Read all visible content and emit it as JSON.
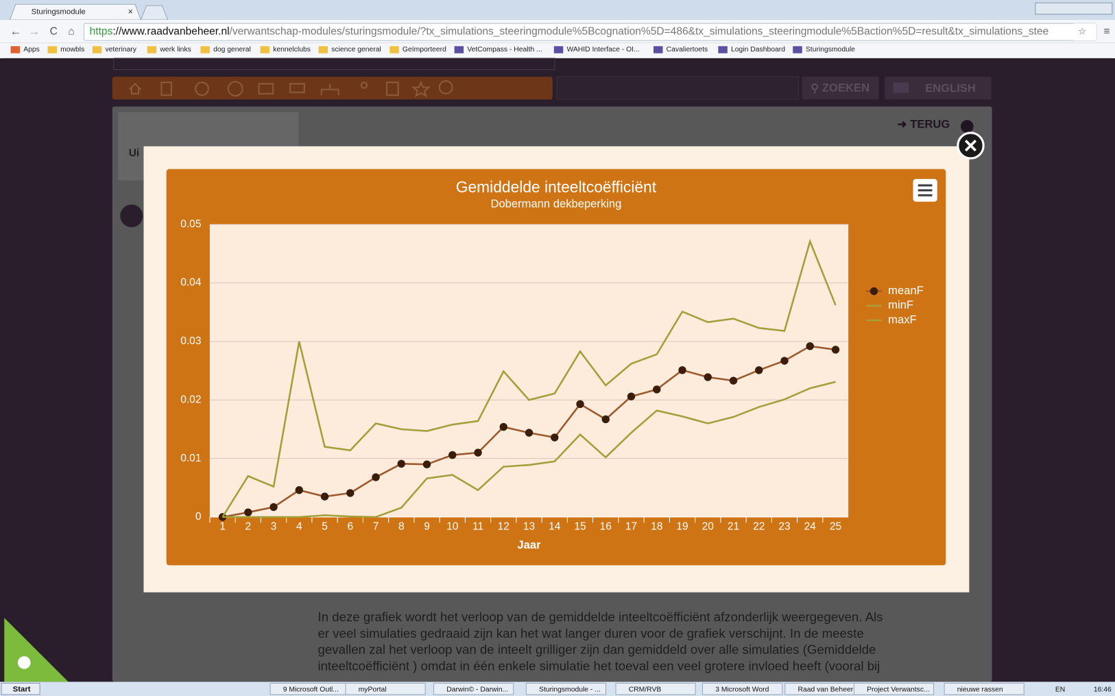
{
  "browser": {
    "tab_title": "Sturingsmodule",
    "url": {
      "scheme": "https",
      "host": "://www.raadvanbeheer.nl",
      "path": "/verwantschap-modules/sturingsmodule/?tx_simulations_steeringmodule%5Bcognation%5D=486&tx_simulations_steeringmodule%5Baction%5D=result&tx_simulations_stee"
    },
    "bookmarks": [
      "Apps",
      "mowbls",
      "veterinary",
      "werk links",
      "dog general",
      "kennelclubs",
      "science general",
      "Geïmporteerd",
      "VetCompass - Health ...",
      "WAHID Interface - OI...",
      "Cavaliertoets",
      "Login Dashboard",
      "Sturingsmodule"
    ]
  },
  "site": {
    "search": "ZOEKEN",
    "language": "ENGLISH",
    "back": "TERUG",
    "side_label": "Ui",
    "paragraph": [
      "In deze grafiek wordt het verloop van de gemiddelde inteeltcoëfficiënt afzonderlijk weergegeven. Als",
      "er veel simulaties gedraaid zijn kan het wat langer duren voor de grafiek verschijnt. In de meeste",
      "gevallen zal het verloop van de inteelt grilliger zijn dan gemiddeld over alle simulaties (Gemiddelde",
      "inteeltcoëfficiënt ) omdat in één enkele simulatie het toeval een veel grotere invloed heeft (vooral bij"
    ]
  },
  "chart_data": {
    "type": "line",
    "title": "Gemiddelde inteeltcoëfficiënt",
    "subtitle": "Dobermann dekbeperking",
    "x_label": "Jaar",
    "categories": [
      "1",
      "2",
      "3",
      "4",
      "5",
      "6",
      "7",
      "8",
      "9",
      "10",
      "11",
      "12",
      "13",
      "14",
      "15",
      "16",
      "17",
      "18",
      "19",
      "20",
      "21",
      "22",
      "23",
      "24",
      "25"
    ],
    "series": [
      {
        "name": "meanF",
        "color": "#9c5a2c",
        "marker_color": "#3b1d0c",
        "marker": true,
        "values": [
          0,
          0.0008,
          0.0017,
          0.0046,
          0.0035,
          0.0041,
          0.0068,
          0.0091,
          0.009,
          0.0106,
          0.011,
          0.0154,
          0.0144,
          0.0136,
          0.0193,
          0.0167,
          0.0206,
          0.0218,
          0.0251,
          0.0239,
          0.0233,
          0.0251,
          0.0267,
          0.0292,
          0.0286
        ]
      },
      {
        "name": "minF",
        "color": "#a3a03c",
        "marker": false,
        "values": [
          0,
          0,
          0,
          0,
          0.0003,
          0.0001,
          0,
          0.0016,
          0.0066,
          0.0072,
          0.0046,
          0.0086,
          0.0089,
          0.0095,
          0.0141,
          0.0102,
          0.0144,
          0.0182,
          0.0172,
          0.016,
          0.0171,
          0.0188,
          0.0201,
          0.022,
          0.0231
        ]
      },
      {
        "name": "maxF",
        "color": "#a3a03c",
        "marker": false,
        "values": [
          0,
          0.007,
          0.0052,
          0.03,
          0.012,
          0.0114,
          0.016,
          0.015,
          0.0147,
          0.0158,
          0.0164,
          0.0249,
          0.02,
          0.0211,
          0.0283,
          0.0225,
          0.0262,
          0.0278,
          0.0351,
          0.0333,
          0.0339,
          0.0323,
          0.0318,
          0.0471,
          0.0362
        ]
      }
    ],
    "ylim": [
      0,
      0.05
    ],
    "yticks": [
      0,
      0.01,
      0.02,
      0.03,
      0.04,
      0.05
    ],
    "grid": true,
    "legend": "right"
  },
  "taskbar": {
    "start": "Start",
    "items": [
      "9 Microsoft Outl...",
      "myPortal",
      "Darwin© - Darwin...",
      "Sturingsmodule - ...",
      "CRM/RVB",
      "3 Microsoft Word",
      "Raad van Beheer ...",
      "Project Verwantsc...",
      "nieuwe rassen"
    ],
    "language": "EN",
    "time": "16:46"
  }
}
